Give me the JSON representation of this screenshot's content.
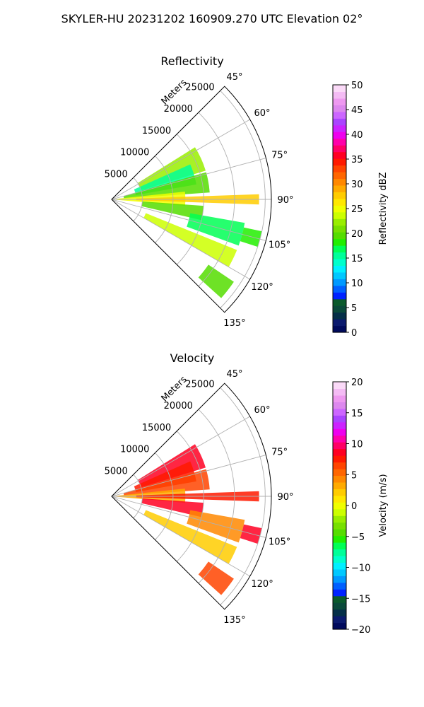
{
  "figure": {
    "suptitle": "SKYLER-HU  20231202  160909.270 UTC Elevation 02°"
  },
  "chart_data": [
    {
      "type": "heatmap",
      "projection": "polar-sector",
      "title": "Reflectivity",
      "radial_label": "Meters",
      "azimuth_range_deg": [
        45,
        135
      ],
      "range_max_m": 26000,
      "range_ticks": [
        "5000",
        "10000",
        "15000",
        "20000",
        "25000"
      ],
      "azimuth_ticks": [
        "45°",
        "60°",
        "75°",
        "90°",
        "105°",
        "120°",
        "135°"
      ],
      "grid": true,
      "colorbar": {
        "label": "Reflectivity dBZ",
        "min": 0,
        "max": 50,
        "ticks": [
          "0",
          "5",
          "10",
          "15",
          "20",
          "25",
          "30",
          "35",
          "40",
          "45",
          "50"
        ],
        "colors": [
          "#000a5c",
          "#0b1a6e",
          "#052f48",
          "#0a4a3a",
          "#0b5a2c",
          "#0022ff",
          "#0060ff",
          "#0099ff",
          "#00c8ff",
          "#00f0ff",
          "#00ffcc",
          "#00ff99",
          "#00ff55",
          "#22ee00",
          "#55dd00",
          "#77e000",
          "#99ee00",
          "#ccff00",
          "#f0ff00",
          "#ffe800",
          "#ffcc00",
          "#ffaa00",
          "#ff8800",
          "#ff6600",
          "#ff4400",
          "#ff1a00",
          "#ff0022",
          "#ff0066",
          "#ff00aa",
          "#ee00ee",
          "#cc22ff",
          "#aa44ff",
          "#cc66ff",
          "#dd88ee",
          "#ee99f0",
          "#f4bbf4",
          "#fbdaf8"
        ]
      },
      "echo_regions": [
        {
          "az": [
            58,
            73
          ],
          "r": [
            5000,
            16000
          ],
          "value": 22
        },
        {
          "az": [
            66,
            80
          ],
          "r": [
            4000,
            14000
          ],
          "value": 15
        },
        {
          "az": [
            74,
            86
          ],
          "r": [
            2000,
            16000
          ],
          "value": 20
        },
        {
          "az": [
            84,
            95
          ],
          "r": [
            500,
            12000
          ],
          "value": 25
        },
        {
          "az": [
            88,
            92
          ],
          "r": [
            4000,
            24000
          ],
          "value": 28
        },
        {
          "az": [
            94,
            103
          ],
          "r": [
            5000,
            15000
          ],
          "value": 19
        },
        {
          "az": [
            100,
            110
          ],
          "r": [
            13000,
            22000
          ],
          "value": 17
        },
        {
          "az": [
            112,
            120
          ],
          "r": [
            6000,
            22000
          ],
          "value": 23
        },
        {
          "az": [
            124,
            132
          ],
          "r": [
            19000,
            24000
          ],
          "value": 20
        },
        {
          "az": [
            102,
            108
          ],
          "r": [
            22000,
            25000
          ],
          "value": 18
        }
      ]
    },
    {
      "type": "heatmap",
      "projection": "polar-sector",
      "title": "Velocity",
      "radial_label": "Meters",
      "azimuth_range_deg": [
        45,
        135
      ],
      "range_max_m": 26000,
      "range_ticks": [
        "5000",
        "10000",
        "15000",
        "20000",
        "25000"
      ],
      "azimuth_ticks": [
        "45°",
        "60°",
        "75°",
        "90°",
        "105°",
        "120°",
        "135°"
      ],
      "grid": true,
      "colorbar": {
        "label": "Velocity (m/s)",
        "min": -20,
        "max": 20,
        "ticks": [
          "−20",
          "−15",
          "−10",
          "−5",
          "0",
          "5",
          "10",
          "15",
          "20"
        ],
        "colors": [
          "#000a5c",
          "#0b1a6e",
          "#052f48",
          "#0a4a3a",
          "#0b5a2c",
          "#0022ff",
          "#0060ff",
          "#0099ff",
          "#00c8ff",
          "#00f0ff",
          "#00ffcc",
          "#00ff99",
          "#00ff55",
          "#22ee00",
          "#55dd00",
          "#77e000",
          "#99ee00",
          "#ccff00",
          "#f0ff00",
          "#ffe800",
          "#ffcc00",
          "#ffaa00",
          "#ff8800",
          "#ff6600",
          "#ff4400",
          "#ff1a00",
          "#ff0022",
          "#ff0066",
          "#ff00aa",
          "#ee00ee",
          "#cc22ff",
          "#aa44ff",
          "#cc66ff",
          "#dd88ee",
          "#ee99f0",
          "#f4bbf4",
          "#fbdaf8"
        ]
      },
      "echo_regions": [
        {
          "az": [
            58,
            73
          ],
          "r": [
            5000,
            16000
          ],
          "value": 9
        },
        {
          "az": [
            66,
            80
          ],
          "r": [
            4000,
            14000
          ],
          "value": 8
        },
        {
          "az": [
            74,
            86
          ],
          "r": [
            2000,
            16000
          ],
          "value": 7
        },
        {
          "az": [
            84,
            95
          ],
          "r": [
            500,
            12000
          ],
          "value": 3
        },
        {
          "az": [
            88,
            92
          ],
          "r": [
            4000,
            24000
          ],
          "value": 8
        },
        {
          "az": [
            94,
            103
          ],
          "r": [
            5000,
            15000
          ],
          "value": 9
        },
        {
          "az": [
            100,
            110
          ],
          "r": [
            13000,
            22000
          ],
          "value": 4
        },
        {
          "az": [
            112,
            120
          ],
          "r": [
            6000,
            22000
          ],
          "value": 2
        },
        {
          "az": [
            124,
            132
          ],
          "r": [
            19000,
            24000
          ],
          "value": 6
        },
        {
          "az": [
            102,
            108
          ],
          "r": [
            22000,
            25000
          ],
          "value": 9
        }
      ]
    }
  ]
}
